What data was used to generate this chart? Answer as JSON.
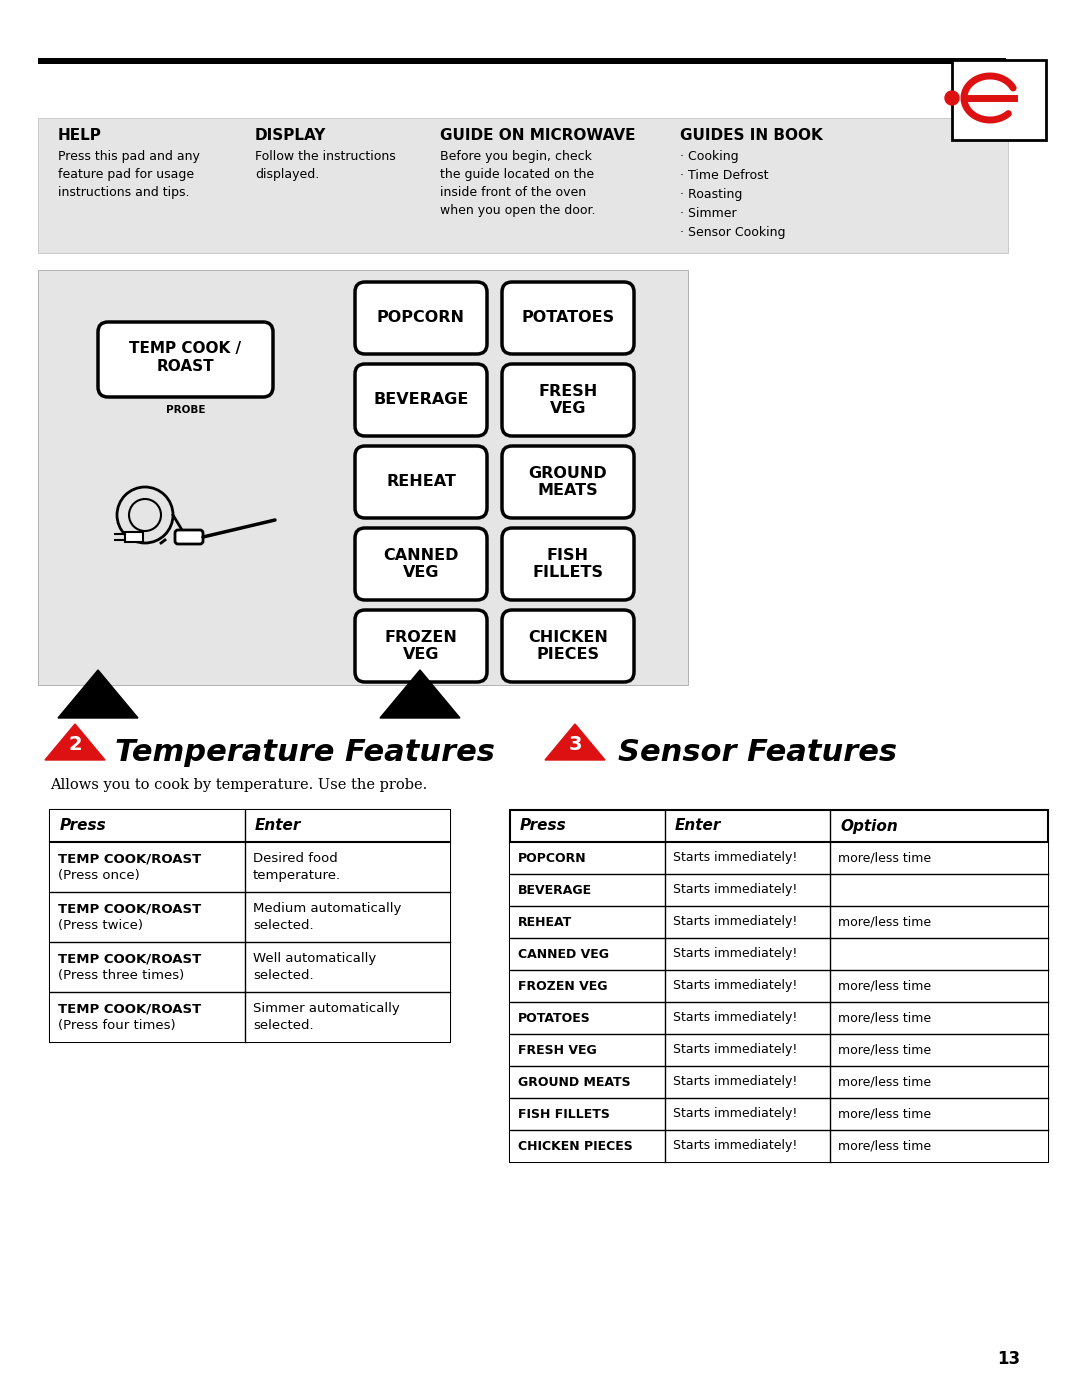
{
  "bg_color": "#ffffff",
  "light_gray": "#e8e8e8",
  "red": "#dd1111",
  "black": "#000000",
  "help_title": "HELP",
  "help_text": "Press this pad and any\nfeature pad for usage\ninstructions and tips.",
  "display_title": "DISPLAY",
  "display_text": "Follow the instructions\ndisplayed.",
  "guide_title": "GUIDE ON MICROWAVE",
  "guide_text": "Before you begin, check\nthe guide located on the\ninside front of the oven\nwhen you open the door.",
  "guides_title": "GUIDES IN BOOK",
  "guides_items": [
    "· Cooking",
    "· Time Defrost",
    "· Roasting",
    "· Simmer",
    "· Sensor Cooking"
  ],
  "buttons_grid": [
    [
      "POPCORN",
      "POTATOES"
    ],
    [
      "BEVERAGE",
      "FRESH\nVEG"
    ],
    [
      "REHEAT",
      "GROUND\nMEATS"
    ],
    [
      "CANNED\nVEG",
      "FISH\nFILLETS"
    ],
    [
      "FROZEN\nVEG",
      "CHICKEN\nPIECES"
    ]
  ],
  "section2_title": "Temperature Features",
  "section2_subtitle": "Allows you to cook by temperature. Use the probe.",
  "section3_title": "Sensor Features",
  "temp_table_headers": [
    "Press",
    "Enter"
  ],
  "temp_table_rows": [
    [
      "TEMP COOK/ROAST\n(Press once)",
      "Desired food\ntemperature."
    ],
    [
      "TEMP COOK/ROAST\n(Press twice)",
      "Medium automatically\nselected."
    ],
    [
      "TEMP COOK/ROAST\n(Press three times)",
      "Well automatically\nselected."
    ],
    [
      "TEMP COOK/ROAST\n(Press four times)",
      "Simmer automatically\nselected."
    ]
  ],
  "sensor_table_headers": [
    "Press",
    "Enter",
    "Option"
  ],
  "sensor_table_rows": [
    [
      "POPCORN",
      "Starts immediately!",
      "more/less time"
    ],
    [
      "BEVERAGE",
      "Starts immediately!",
      ""
    ],
    [
      "REHEAT",
      "Starts immediately!",
      "more/less time"
    ],
    [
      "CANNED VEG",
      "Starts immediately!",
      ""
    ],
    [
      "FROZEN VEG",
      "Starts immediately!",
      "more/less time"
    ],
    [
      "POTATOES",
      "Starts immediately!",
      "more/less time"
    ],
    [
      "FRESH VEG",
      "Starts immediately!",
      "more/less time"
    ],
    [
      "GROUND MEATS",
      "Starts immediately!",
      "more/less time"
    ],
    [
      "FISH FILLETS",
      "Starts immediately!",
      "more/less time"
    ],
    [
      "CHICKEN PIECES",
      "Starts immediately!",
      "more/less time"
    ]
  ],
  "page_number": "13"
}
